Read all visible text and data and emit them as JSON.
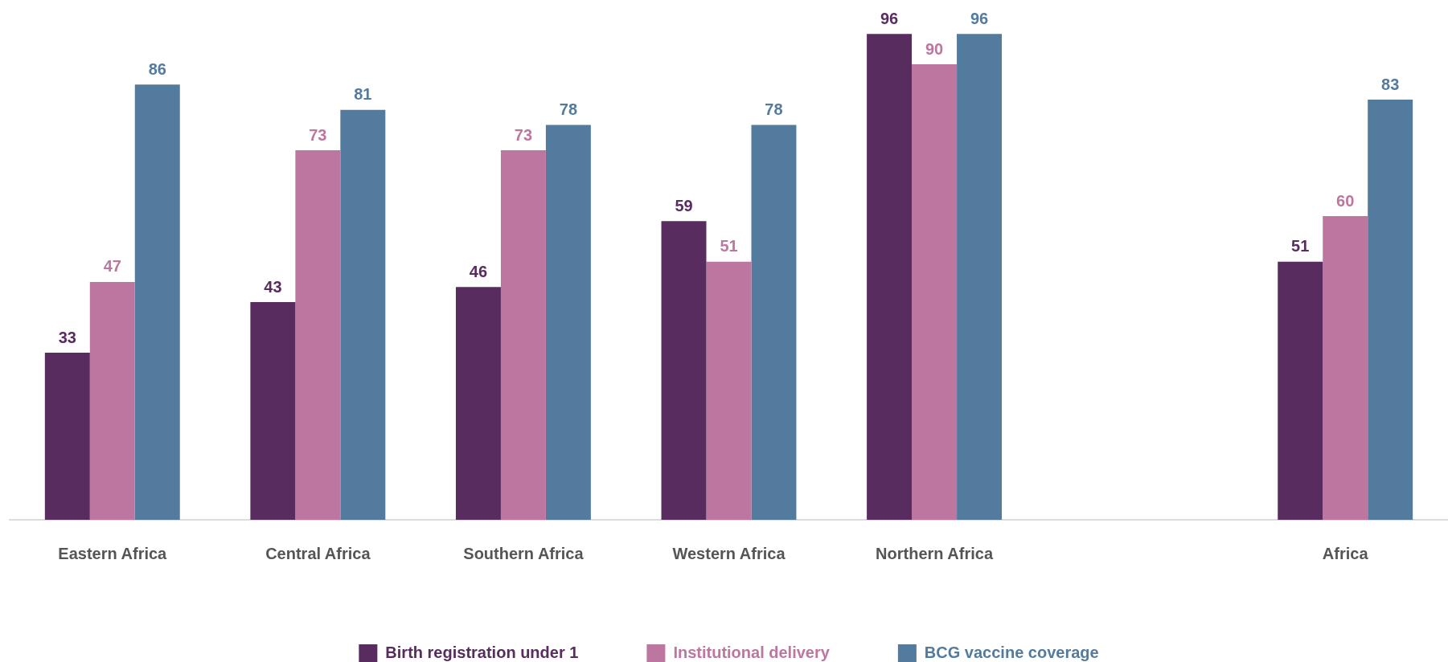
{
  "chart_data": {
    "type": "bar",
    "categories": [
      "Eastern Africa",
      "Central Africa",
      "Southern Africa",
      "Western Africa",
      "Northern Africa",
      null,
      "Africa"
    ],
    "series": [
      {
        "name": "Birth registration under 1",
        "color": "#582c5f",
        "values": [
          33,
          43,
          46,
          59,
          96,
          null,
          51
        ]
      },
      {
        "name": "Institutional delivery",
        "color": "#bd769f",
        "values": [
          47,
          73,
          73,
          51,
          90,
          null,
          60
        ]
      },
      {
        "name": "BCG vaccine coverage",
        "color": "#537b9e",
        "values": [
          86,
          81,
          78,
          78,
          96,
          null,
          83
        ]
      }
    ],
    "data_labels": true,
    "legend": "bottom",
    "tick_labels": "x"
  }
}
